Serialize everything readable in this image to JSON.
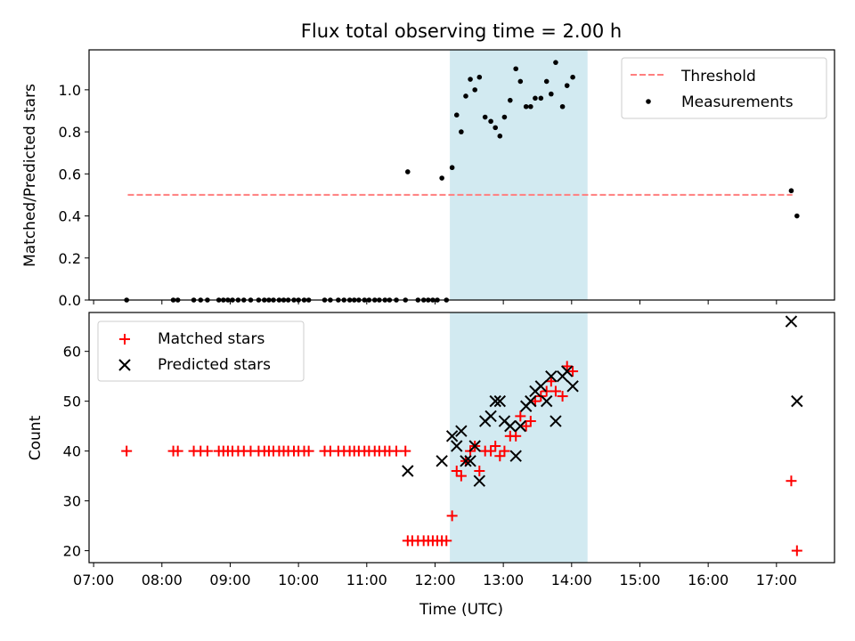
{
  "title": "Flux total observing time = 2.00 h",
  "chart_data": [
    {
      "type": "scatter",
      "panel": "top",
      "title": "Flux total observing time = 2.00 h",
      "xlabel": "",
      "ylabel": "Matched/Predicted stars",
      "xlim": [
        "06:56",
        "17:51"
      ],
      "ylim": [
        0,
        1.19
      ],
      "yticks": [
        "0.0",
        "0.2",
        "0.4",
        "0.6",
        "0.8",
        "1.0"
      ],
      "legend_loc": "upper right",
      "shaded_span": [
        "12:13",
        "14:14"
      ],
      "shade_color": "#add8e6",
      "threshold": {
        "name": "Threshold",
        "value": 0.5,
        "x": [
          "07:30",
          "17:14"
        ],
        "color": "#ff7f7f",
        "style": "dashed"
      },
      "series": [
        {
          "name": "Measurements",
          "color": "#000000",
          "marker": "dot",
          "points": [
            [
              "07:29",
              0
            ],
            [
              "08:10",
              0
            ],
            [
              "08:14",
              0
            ],
            [
              "08:28",
              0
            ],
            [
              "08:34",
              0
            ],
            [
              "08:40",
              0
            ],
            [
              "08:50",
              0
            ],
            [
              "08:54",
              0
            ],
            [
              "08:58",
              0
            ],
            [
              "09:02",
              0
            ],
            [
              "09:07",
              0
            ],
            [
              "09:12",
              0
            ],
            [
              "09:18",
              0
            ],
            [
              "09:25",
              0
            ],
            [
              "09:30",
              0
            ],
            [
              "09:34",
              0
            ],
            [
              "09:38",
              0
            ],
            [
              "09:43",
              0
            ],
            [
              "09:47",
              0
            ],
            [
              "09:51",
              0
            ],
            [
              "09:56",
              0
            ],
            [
              "10:00",
              0
            ],
            [
              "10:05",
              0
            ],
            [
              "10:09",
              0
            ],
            [
              "10:23",
              0
            ],
            [
              "10:28",
              0
            ],
            [
              "10:35",
              0
            ],
            [
              "10:40",
              0
            ],
            [
              "10:45",
              0
            ],
            [
              "10:49",
              0
            ],
            [
              "10:53",
              0
            ],
            [
              "10:58",
              0
            ],
            [
              "11:02",
              0
            ],
            [
              "11:07",
              0
            ],
            [
              "11:11",
              0
            ],
            [
              "11:16",
              0
            ],
            [
              "11:20",
              0
            ],
            [
              "11:26",
              0
            ],
            [
              "11:34",
              0
            ],
            [
              "11:36",
              0.61
            ],
            [
              "11:45",
              0
            ],
            [
              "11:50",
              0
            ],
            [
              "11:54",
              0
            ],
            [
              "11:58",
              0
            ],
            [
              "12:02",
              0
            ],
            [
              "12:06",
              0.58
            ],
            [
              "12:10",
              0
            ],
            [
              "12:15",
              0.63
            ],
            [
              "12:19",
              0.88
            ],
            [
              "12:23",
              0.8
            ],
            [
              "12:27",
              0.97
            ],
            [
              "12:31",
              1.05
            ],
            [
              "12:35",
              1.0
            ],
            [
              "12:39",
              1.06
            ],
            [
              "12:44",
              0.87
            ],
            [
              "12:49",
              0.85
            ],
            [
              "12:53",
              0.82
            ],
            [
              "12:57",
              0.78
            ],
            [
              "13:01",
              0.87
            ],
            [
              "13:06",
              0.95
            ],
            [
              "13:11",
              1.1
            ],
            [
              "13:15",
              1.04
            ],
            [
              "13:20",
              0.92
            ],
            [
              "13:24",
              0.92
            ],
            [
              "13:28",
              0.96
            ],
            [
              "13:33",
              0.96
            ],
            [
              "13:38",
              1.04
            ],
            [
              "13:42",
              0.98
            ],
            [
              "13:46",
              1.13
            ],
            [
              "13:52",
              0.92
            ],
            [
              "13:56",
              1.02
            ],
            [
              "14:01",
              1.06
            ],
            [
              "17:13",
              0.52
            ],
            [
              "17:18",
              0.4
            ]
          ]
        }
      ]
    },
    {
      "type": "scatter",
      "panel": "bottom",
      "xlabel": "Time (UTC)",
      "ylabel": "Count",
      "xlim": [
        "06:56",
        "17:51"
      ],
      "ylim": [
        17.6,
        67.8
      ],
      "xticks": [
        "07:00",
        "08:00",
        "09:00",
        "10:00",
        "11:00",
        "12:00",
        "13:00",
        "14:00",
        "15:00",
        "16:00",
        "17:00"
      ],
      "yticks": [
        "20",
        "30",
        "40",
        "50",
        "60"
      ],
      "legend_loc": "upper left",
      "shaded_span": [
        "12:13",
        "14:14"
      ],
      "shade_color": "#add8e6",
      "series": [
        {
          "name": "Matched stars",
          "color": "#ff0000",
          "marker": "plus",
          "points": [
            [
              "07:29",
              40
            ],
            [
              "08:10",
              40
            ],
            [
              "08:14",
              40
            ],
            [
              "08:28",
              40
            ],
            [
              "08:34",
              40
            ],
            [
              "08:40",
              40
            ],
            [
              "08:50",
              40
            ],
            [
              "08:54",
              40
            ],
            [
              "08:58",
              40
            ],
            [
              "09:02",
              40
            ],
            [
              "09:07",
              40
            ],
            [
              "09:12",
              40
            ],
            [
              "09:18",
              40
            ],
            [
              "09:25",
              40
            ],
            [
              "09:30",
              40
            ],
            [
              "09:34",
              40
            ],
            [
              "09:38",
              40
            ],
            [
              "09:43",
              40
            ],
            [
              "09:47",
              40
            ],
            [
              "09:51",
              40
            ],
            [
              "09:56",
              40
            ],
            [
              "10:00",
              40
            ],
            [
              "10:05",
              40
            ],
            [
              "10:09",
              40
            ],
            [
              "10:23",
              40
            ],
            [
              "10:28",
              40
            ],
            [
              "10:35",
              40
            ],
            [
              "10:40",
              40
            ],
            [
              "10:45",
              40
            ],
            [
              "10:49",
              40
            ],
            [
              "10:53",
              40
            ],
            [
              "10:58",
              40
            ],
            [
              "11:02",
              40
            ],
            [
              "11:07",
              40
            ],
            [
              "11:11",
              40
            ],
            [
              "11:16",
              40
            ],
            [
              "11:20",
              40
            ],
            [
              "11:26",
              40
            ],
            [
              "11:34",
              40
            ],
            [
              "11:36",
              22
            ],
            [
              "11:40",
              22
            ],
            [
              "11:45",
              22
            ],
            [
              "11:50",
              22
            ],
            [
              "11:54",
              22
            ],
            [
              "11:58",
              22
            ],
            [
              "12:02",
              22
            ],
            [
              "12:06",
              22
            ],
            [
              "12:10",
              22
            ],
            [
              "12:15",
              27
            ],
            [
              "12:19",
              36
            ],
            [
              "12:23",
              35
            ],
            [
              "12:27",
              38
            ],
            [
              "12:31",
              40
            ],
            [
              "12:35",
              41
            ],
            [
              "12:39",
              36
            ],
            [
              "12:44",
              40
            ],
            [
              "12:49",
              40
            ],
            [
              "12:53",
              41
            ],
            [
              "12:57",
              39
            ],
            [
              "13:01",
              40
            ],
            [
              "13:06",
              43
            ],
            [
              "13:11",
              43
            ],
            [
              "13:15",
              47
            ],
            [
              "13:20",
              45
            ],
            [
              "13:24",
              46
            ],
            [
              "13:28",
              50
            ],
            [
              "13:33",
              51
            ],
            [
              "13:38",
              52
            ],
            [
              "13:42",
              54
            ],
            [
              "13:46",
              52
            ],
            [
              "13:52",
              51
            ],
            [
              "13:56",
              57
            ],
            [
              "14:01",
              56
            ],
            [
              "17:13",
              34
            ],
            [
              "17:18",
              20
            ]
          ]
        },
        {
          "name": "Predicted stars",
          "color": "#000000",
          "marker": "x",
          "points": [
            [
              "11:36",
              36
            ],
            [
              "12:06",
              38
            ],
            [
              "12:15",
              43
            ],
            [
              "12:19",
              41
            ],
            [
              "12:23",
              44
            ],
            [
              "12:27",
              38
            ],
            [
              "12:31",
              38
            ],
            [
              "12:35",
              41
            ],
            [
              "12:39",
              34
            ],
            [
              "12:44",
              46
            ],
            [
              "12:49",
              47
            ],
            [
              "12:53",
              50
            ],
            [
              "12:57",
              50
            ],
            [
              "13:01",
              46
            ],
            [
              "13:06",
              45
            ],
            [
              "13:11",
              39
            ],
            [
              "13:15",
              45
            ],
            [
              "13:20",
              49
            ],
            [
              "13:24",
              50
            ],
            [
              "13:28",
              52
            ],
            [
              "13:33",
              53
            ],
            [
              "13:38",
              50
            ],
            [
              "13:42",
              55
            ],
            [
              "13:46",
              46
            ],
            [
              "13:52",
              55
            ],
            [
              "13:56",
              56
            ],
            [
              "14:01",
              53
            ],
            [
              "17:13",
              66
            ],
            [
              "17:18",
              50
            ]
          ]
        }
      ]
    }
  ]
}
